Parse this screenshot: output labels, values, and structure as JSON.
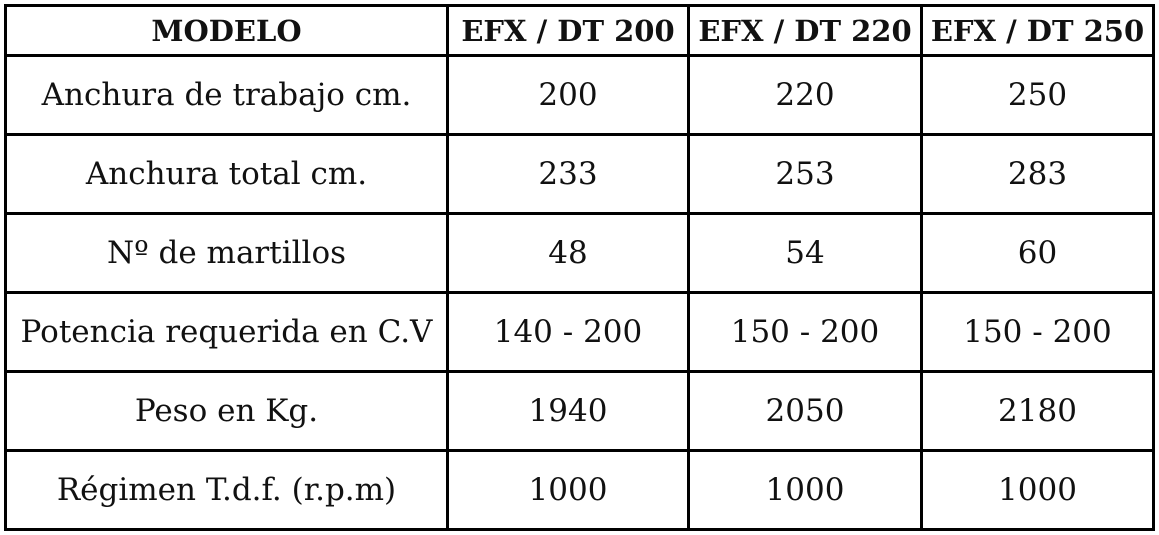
{
  "table": {
    "header": [
      "MODELO",
      "EFX / DT 200",
      "EFX / DT 220",
      "EFX / DT 250"
    ],
    "rows": [
      [
        "Anchura de trabajo cm.",
        200,
        220,
        250
      ],
      [
        "Anchura total cm.",
        233,
        253,
        283
      ],
      [
        "Nº de martillos",
        48,
        54,
        60
      ],
      [
        "Potencia requerida en C.V",
        "140 - 200",
        "150 - 200",
        "150 - 200"
      ],
      [
        "Peso en Kg.",
        1940,
        2050,
        2180
      ],
      [
        "Régimen T.d.f. (r.p.m)",
        1000,
        1000,
        1000
      ]
    ]
  }
}
